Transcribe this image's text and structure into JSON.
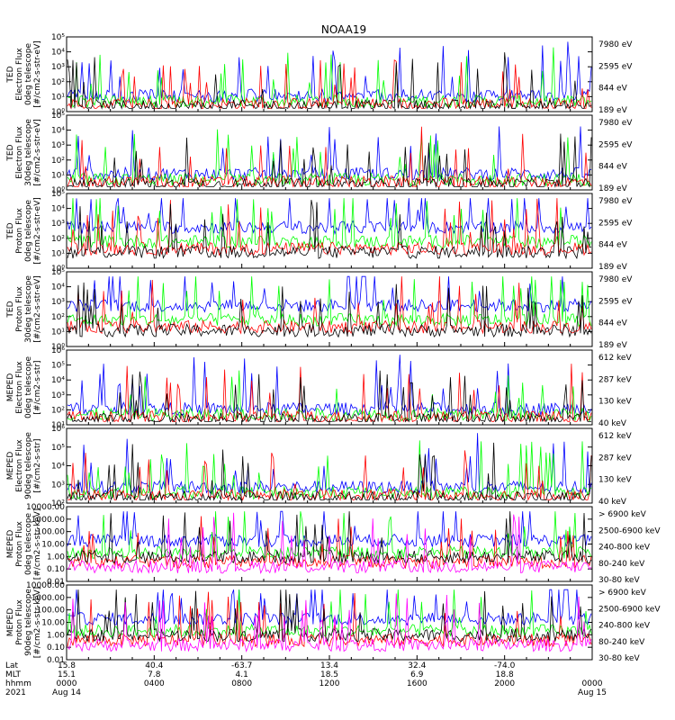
{
  "title": "NOAA19",
  "colors": {
    "black": "#000000",
    "red": "#ff0000",
    "green": "#00ff00",
    "blue": "#0000ff",
    "magenta": "#ff00ff"
  },
  "chart_data": [
    {
      "type": "line",
      "ylabel": [
        "TED",
        "Electron Flux",
        "0deg telescope",
        "[#/cm2-s-str-eV]"
      ],
      "ylog": true,
      "ylim": [
        1,
        100000
      ],
      "yticks": [
        "10⁰",
        "10¹",
        "10²",
        "10³",
        "10⁴",
        "10⁵"
      ],
      "series": [
        {
          "name": "7980 eV",
          "color": "#000000"
        },
        {
          "name": "2595 eV",
          "color": "#ff0000"
        },
        {
          "name": "844 eV",
          "color": "#00ff00"
        },
        {
          "name": "189 eV",
          "color": "#0000ff"
        }
      ]
    },
    {
      "type": "line",
      "ylabel": [
        "TED",
        "Electron Flux",
        "30deg telescope",
        "[#/cm2-s-str-eV]"
      ],
      "ylog": true,
      "ylim": [
        1,
        100000
      ],
      "yticks": [
        "10⁰",
        "10¹",
        "10²",
        "10³",
        "10⁴",
        "10⁵"
      ],
      "series": [
        {
          "name": "7980 eV",
          "color": "#000000"
        },
        {
          "name": "2595 eV",
          "color": "#ff0000"
        },
        {
          "name": "844 eV",
          "color": "#00ff00"
        },
        {
          "name": "189 eV",
          "color": "#0000ff"
        }
      ]
    },
    {
      "type": "line",
      "ylabel": [
        "TED",
        "Proton Flux",
        "0deg telescope",
        "[#/cm2-s-str-eV]"
      ],
      "ylog": true,
      "ylim": [
        1,
        100000
      ],
      "yticks": [
        "10⁰",
        "10¹",
        "10²",
        "10³",
        "10⁴",
        "10⁵"
      ],
      "series": [
        {
          "name": "7980 eV",
          "color": "#000000"
        },
        {
          "name": "2595 eV",
          "color": "#ff0000"
        },
        {
          "name": "844 eV",
          "color": "#00ff00"
        },
        {
          "name": "189 eV",
          "color": "#0000ff"
        }
      ]
    },
    {
      "type": "line",
      "ylabel": [
        "TED",
        "Proton Flux",
        "30deg telescope",
        "[#/cm2-s-str-eV]"
      ],
      "ylog": true,
      "ylim": [
        1,
        100000
      ],
      "yticks": [
        "10⁰",
        "10¹",
        "10²",
        "10³",
        "10⁴",
        "10⁵"
      ],
      "series": [
        {
          "name": "7980 eV",
          "color": "#000000"
        },
        {
          "name": "2595 eV",
          "color": "#ff0000"
        },
        {
          "name": "844 eV",
          "color": "#00ff00"
        },
        {
          "name": "189 eV",
          "color": "#0000ff"
        }
      ]
    },
    {
      "type": "line",
      "ylabel": [
        "MEPED",
        "Electron Flux",
        "0deg telescope",
        "[#/cm2-s-str]"
      ],
      "ylog": true,
      "ylim": [
        10,
        1000000
      ],
      "yticks": [
        "10¹",
        "10²",
        "10³",
        "10⁴",
        "10⁵",
        "10⁶"
      ],
      "series": [
        {
          "name": "612 keV",
          "color": "#000000"
        },
        {
          "name": "287 keV",
          "color": "#ff0000"
        },
        {
          "name": "130 keV",
          "color": "#00ff00"
        },
        {
          "name": "40 keV",
          "color": "#0000ff"
        }
      ]
    },
    {
      "type": "line",
      "ylabel": [
        "MEPED",
        "Electron Flux",
        "90deg telescope",
        "[#/cm2-s-str]"
      ],
      "ylog": true,
      "ylim": [
        100,
        1000000
      ],
      "yticks": [
        "10²",
        "10³",
        "10⁴",
        "10⁵",
        "10⁶"
      ],
      "series": [
        {
          "name": "612 keV",
          "color": "#000000"
        },
        {
          "name": "287 keV",
          "color": "#ff0000"
        },
        {
          "name": "130 keV",
          "color": "#00ff00"
        },
        {
          "name": "40 keV",
          "color": "#0000ff"
        }
      ]
    },
    {
      "type": "line",
      "ylabel": [
        "MEPED",
        "Proton Flux",
        "0deg telescope",
        "[#/cm2-s-str-keV]"
      ],
      "ylog": true,
      "ylim": [
        0.01,
        10000
      ],
      "yticks": [
        "0.01",
        "0.10",
        "1.00",
        "10.00",
        "100.00",
        "1000.00",
        "10000.00"
      ],
      "series": [
        {
          "name": "> 6900 keV",
          "color": "#ff00ff"
        },
        {
          "name": "2500-6900 keV",
          "color": "#000000"
        },
        {
          "name": "240-800 keV",
          "color": "#ff0000"
        },
        {
          "name": "80-240 keV",
          "color": "#00ff00"
        },
        {
          "name": "30-80 keV",
          "color": "#0000ff"
        }
      ]
    },
    {
      "type": "line",
      "ylabel": [
        "MEPED",
        "Proton Flux",
        "90deg telescope",
        "[#/cm2-s-str-keV]"
      ],
      "ylog": true,
      "ylim": [
        0.01,
        10000
      ],
      "yticks": [
        "0.01",
        "0.10",
        "1.00",
        "10.00",
        "100.00",
        "1000.00",
        "10000.00"
      ],
      "series": [
        {
          "name": "> 6900 keV",
          "color": "#ff00ff"
        },
        {
          "name": "2500-6900 keV",
          "color": "#000000"
        },
        {
          "name": "240-800 keV",
          "color": "#ff0000"
        },
        {
          "name": "80-240 keV",
          "color": "#00ff00"
        },
        {
          "name": "30-80 keV",
          "color": "#0000ff"
        }
      ]
    }
  ],
  "xaxis": {
    "row_labels": [
      "Lat",
      "MLT",
      "hhmm",
      "2021"
    ],
    "ticks": [
      {
        "lat": "15.8",
        "mlt": "15.1",
        "hhmm": "0000",
        "date": "Aug 14"
      },
      {
        "lat": "40.4",
        "mlt": "7.8",
        "hhmm": "0400",
        "date": ""
      },
      {
        "lat": "-63.7",
        "mlt": "4.1",
        "hhmm": "0800",
        "date": ""
      },
      {
        "lat": "13.4",
        "mlt": "18.5",
        "hhmm": "1200",
        "date": ""
      },
      {
        "lat": "32.4",
        "mlt": "6.9",
        "hhmm": "1600",
        "date": ""
      },
      {
        "lat": "-74.0",
        "mlt": "18.8",
        "hhmm": "2000",
        "date": ""
      },
      {
        "lat": "",
        "mlt": "",
        "hhmm": "0000",
        "date": "Aug 15"
      }
    ]
  }
}
